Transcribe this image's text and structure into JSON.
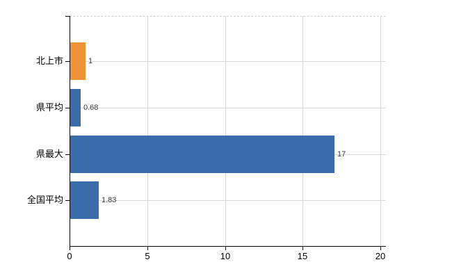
{
  "chart_data": {
    "type": "bar",
    "orientation": "horizontal",
    "title": "",
    "categories": [
      "北上市",
      "県平均",
      "県最大",
      "全国平均"
    ],
    "values": [
      1,
      0.68,
      17,
      1.83
    ],
    "value_labels": [
      "1",
      "0.68",
      "17",
      "1.83"
    ],
    "bar_colors": [
      "#ef9338",
      "#3a6cac",
      "#3a6cac",
      "#3a6cac"
    ],
    "x_ticks": [
      0,
      5,
      10,
      15,
      20
    ],
    "x_tick_labels": [
      "0",
      "5",
      "10",
      "15",
      "20"
    ],
    "xlim": [
      0,
      20
    ],
    "grid": true,
    "gridline_color": "#d8d8d8",
    "top_border_color": "#d2cbc7",
    "axis_color": "#000000",
    "text_color": "#000000",
    "value_label_color": "#3a3a3a",
    "background_color": "#ffffff",
    "legend_position": "none"
  }
}
